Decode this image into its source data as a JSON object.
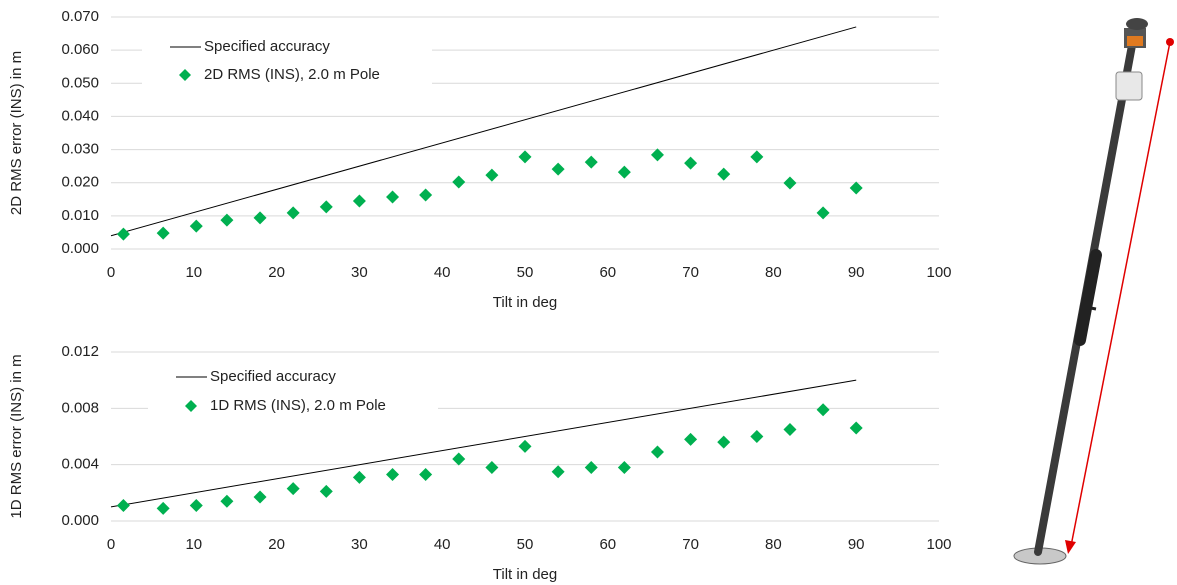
{
  "chart_data": [
    {
      "type": "scatter",
      "x_label": "Tilt in deg",
      "y_label": "2D RMS error (INS) in m",
      "xlim": [
        0,
        100
      ],
      "xticks": [
        0,
        10,
        20,
        30,
        40,
        50,
        60,
        70,
        80,
        90,
        100
      ],
      "ylim": [
        0,
        0.07
      ],
      "yticks": [
        {
          "value": 0,
          "label": "0.000"
        },
        {
          "value": 0.01,
          "label": "0.010"
        },
        {
          "value": 0.02,
          "label": "0.020"
        },
        {
          "value": 0.03,
          "label": "0.030"
        },
        {
          "value": 0.04,
          "label": "0.040"
        },
        {
          "value": 0.05,
          "label": "0.050"
        },
        {
          "value": 0.06,
          "label": "0.060"
        },
        {
          "value": 0.07,
          "label": "0.070"
        }
      ],
      "grid": true,
      "legend": "top-left",
      "series": [
        {
          "name": "Specified accuracy",
          "kind": "line",
          "color": "#000000",
          "x": [
            0,
            90
          ],
          "values": [
            0.004,
            0.067
          ]
        },
        {
          "name": "2D RMS (INS), 2.0 m Pole",
          "kind": "marker",
          "color": "#00b050",
          "x": [
            1.5,
            6.3,
            10.3,
            14,
            18,
            22,
            26,
            30,
            34,
            38,
            42,
            46,
            50,
            54,
            58,
            62,
            66,
            70,
            74,
            78,
            82,
            86,
            90
          ],
          "values": [
            0.0045,
            0.0048,
            0.0069,
            0.0087,
            0.0094,
            0.0109,
            0.0127,
            0.0145,
            0.0157,
            0.0163,
            0.0202,
            0.0223,
            0.0278,
            0.0241,
            0.0262,
            0.0232,
            0.0284,
            0.0259,
            0.0226,
            0.0278,
            0.0199,
            0.0109,
            0.0184
          ]
        }
      ]
    },
    {
      "type": "scatter",
      "x_label": "Tilt in deg",
      "y_label": "1D RMS error (INS) in m",
      "xlim": [
        0,
        100
      ],
      "xticks": [
        0,
        10,
        20,
        30,
        40,
        50,
        60,
        70,
        80,
        90,
        100
      ],
      "ylim": [
        0,
        0.012
      ],
      "yticks": [
        {
          "value": 0,
          "label": "0.000"
        },
        {
          "value": 0.004,
          "label": "0.004"
        },
        {
          "value": 0.008,
          "label": "0.008"
        },
        {
          "value": 0.012,
          "label": "0.012"
        }
      ],
      "grid": true,
      "legend": "top-left",
      "series": [
        {
          "name": "Specified accuracy",
          "kind": "line",
          "color": "#000000",
          "x": [
            0,
            90
          ],
          "values": [
            0.001,
            0.01
          ]
        },
        {
          "name": "1D RMS (INS), 2.0 m Pole",
          "kind": "marker",
          "color": "#00b050",
          "x": [
            1.5,
            6.3,
            10.3,
            14,
            18,
            22,
            26,
            30,
            34,
            38,
            42,
            46,
            50,
            54,
            58,
            62,
            66,
            70,
            74,
            78,
            82,
            86,
            90
          ],
          "values": [
            0.0011,
            0.0009,
            0.0011,
            0.0014,
            0.0017,
            0.0023,
            0.0021,
            0.0031,
            0.0033,
            0.0033,
            0.0044,
            0.0038,
            0.0053,
            0.0035,
            0.0038,
            0.0038,
            0.0049,
            0.0058,
            0.0056,
            0.006,
            0.0065,
            0.0079,
            0.0066
          ]
        }
      ]
    }
  ]
}
